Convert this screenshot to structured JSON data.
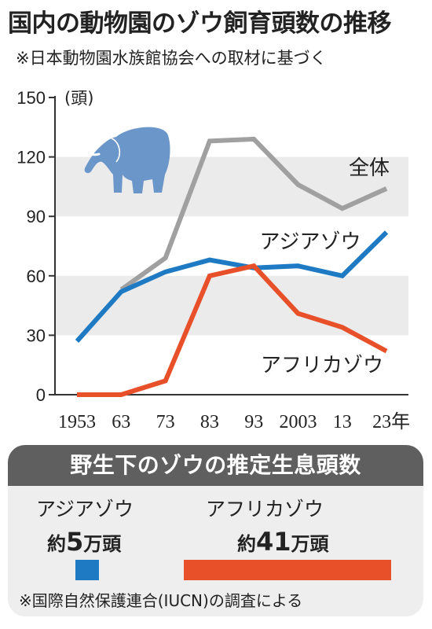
{
  "title": "国内の動物園のゾウ飼育頭数の推移",
  "subtitle": "※日本動物園水族館協会への取材に基づく",
  "colors": {
    "total": "#a0a0a0",
    "asian": "#1f7ac4",
    "african": "#e8502a",
    "band": "#ebebeb",
    "elephant": "#6a96c9"
  },
  "icons": {
    "elephant": "elephant-icon"
  },
  "chart_data": {
    "type": "line",
    "title": "国内の動物園のゾウ飼育頭数の推移",
    "x": [
      1953,
      1963,
      1973,
      1983,
      1993,
      2003,
      2013,
      2023
    ],
    "x_tick_labels": [
      "1953",
      "63",
      "73",
      "83",
      "93",
      "2003",
      "13",
      "23年"
    ],
    "ylim": [
      0,
      150
    ],
    "y_ticks": [
      0,
      30,
      60,
      90,
      120,
      150
    ],
    "y_unit": "(頭)",
    "grid": "alternating-bands",
    "series": [
      {
        "name": "全体",
        "color": "#a0a0a0",
        "x": [
          1963,
          1973,
          1983,
          1993,
          2003,
          2013,
          2023
        ],
        "values": [
          53,
          69,
          128,
          129,
          106,
          94,
          104
        ]
      },
      {
        "name": "アジアゾウ",
        "color": "#1f7ac4",
        "x": [
          1953,
          1963,
          1973,
          1983,
          1993,
          2003,
          2013,
          2023
        ],
        "values": [
          27,
          52,
          62,
          68,
          64,
          65,
          60,
          82
        ]
      },
      {
        "name": "アフリカゾウ",
        "color": "#e8502a",
        "x": [
          1953,
          1963,
          1973,
          1983,
          1993,
          2003,
          2013,
          2023
        ],
        "values": [
          0,
          0,
          7,
          60,
          65,
          41,
          34,
          22
        ]
      }
    ]
  },
  "wild": {
    "heading": "野生下のゾウの推定生息頭数",
    "asian": {
      "name": "アジアゾウ",
      "prefix": "約",
      "number": "5",
      "unit": "万頭",
      "value": 5
    },
    "african": {
      "name": "アフリカゾウ",
      "prefix": "約",
      "number": "41",
      "unit": "万頭",
      "value": 41
    },
    "note": "※国際自然保護連合(IUCN)の調査による"
  }
}
